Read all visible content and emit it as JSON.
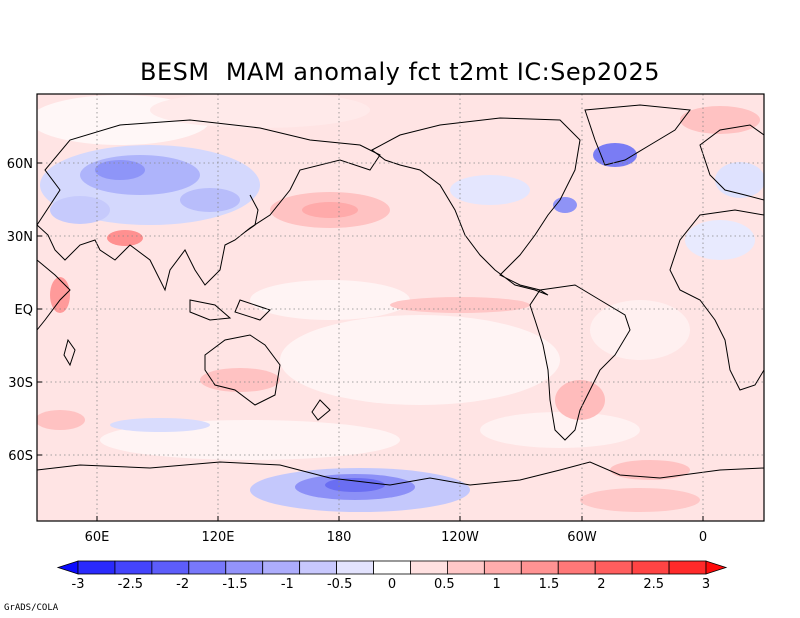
{
  "title": "BESM  MAM anomaly fct t2mt IC:Sep2025",
  "credit": "GrADS/COLA",
  "map": {
    "variable": "2m temperature anomaly forecast",
    "lat_labels": [
      "60N",
      "30N",
      "EQ",
      "30S",
      "60S"
    ],
    "lat_values": [
      60,
      30,
      0,
      -30,
      -60
    ],
    "lon_labels": [
      "60E",
      "120E",
      "180",
      "120W",
      "60W",
      "0"
    ],
    "lon_values": [
      60,
      120,
      180,
      240,
      300,
      360
    ],
    "lon_range": [
      30,
      390
    ],
    "lat_range": [
      -90,
      90
    ]
  },
  "colorbar": {
    "ticks": [
      "-3",
      "-2.5",
      "-2",
      "-1.5",
      "-1",
      "-0.5",
      "0",
      "0.5",
      "1",
      "1.5",
      "2",
      "2.5",
      "3"
    ],
    "colors": [
      "#0b0bff",
      "#2a2afc",
      "#4444fc",
      "#5d5dfb",
      "#7878fb",
      "#9393fb",
      "#adadfc",
      "#c8c8fd",
      "#e3e3fe",
      "#ffffff",
      "#ffe1e1",
      "#ffc8c8",
      "#ffadad",
      "#ff9393",
      "#ff7878",
      "#ff5e5e",
      "#ff4444",
      "#ff2a2a",
      "#ff0b0b"
    ]
  },
  "anomalies": {
    "warm_color": "#ffd4d4",
    "warm_strong_color": "#ffb4b4",
    "cold_color": "#d4d8fd",
    "cold_strong_color": "#7a7cf4"
  }
}
